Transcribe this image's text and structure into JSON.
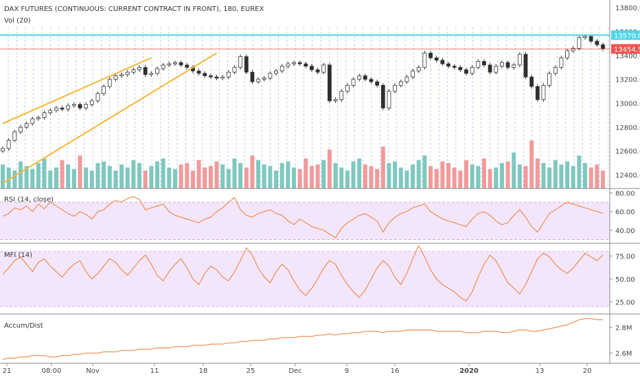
{
  "chart_data": {
    "type": "line",
    "title": "DAX FUTURES (CONTINUOUS: CURRENT CONTRACT IN FRONT), 180, EUREX",
    "x_ticks": [
      "21",
      "08:00",
      "Nov",
      "11",
      "18",
      "25",
      "Dec",
      "9",
      "16",
      "2020",
      "13",
      "20"
    ],
    "price_panel": {
      "y_ticks": [
        13800.0,
        13600.0,
        13400.0,
        13200.0,
        13000.0,
        12800.0,
        12600.0,
        12400.0
      ],
      "ylim": [
        12320,
        13830
      ],
      "volume_label": "Vol (20)",
      "close_series": [
        12620,
        12690,
        12760,
        12800,
        12830,
        12870,
        12880,
        12920,
        12940,
        12960,
        12950,
        12980,
        12990,
        12960,
        12990,
        13020,
        13080,
        13140,
        13200,
        13230,
        13240,
        13260,
        13280,
        13300,
        13240,
        13250,
        13290,
        13320,
        13330,
        13340,
        13320,
        13300,
        13270,
        13250,
        13230,
        13220,
        13210,
        13220,
        13260,
        13300,
        13390,
        13260,
        13180,
        13200,
        13210,
        13250,
        13270,
        13310,
        13330,
        13340,
        13330,
        13310,
        13280,
        13260,
        13320,
        13020,
        13030,
        13100,
        13150,
        13200,
        13230,
        13200,
        13180,
        13150,
        12960,
        13100,
        13150,
        13180,
        13220,
        13270,
        13300,
        13420,
        13380,
        13360,
        13330,
        13310,
        13300,
        13280,
        13250,
        13300,
        13350,
        13320,
        13260,
        13310,
        13340,
        13300,
        13320,
        13410,
        13220,
        13140,
        13030,
        13150,
        13250,
        13300,
        13380,
        13440,
        13460,
        13550,
        13560,
        13520,
        13490,
        13454
      ],
      "ma_line_value": 13570.0,
      "last_value": 13454.5,
      "line_labels": [
        "13570.0",
        "13454.5"
      ],
      "trendlines": [
        "upper-channel",
        "lower-channel"
      ],
      "volume_series": [
        80,
        70,
        60,
        90,
        75,
        65,
        85,
        100,
        60,
        70,
        95,
        80,
        65,
        110,
        70,
        60,
        85,
        90,
        75,
        60,
        80,
        70,
        95,
        85,
        60,
        75,
        90,
        100,
        70,
        65,
        80,
        85,
        60,
        95,
        70,
        75,
        90,
        80,
        65,
        100,
        85,
        70,
        110,
        95,
        80,
        75,
        60,
        85,
        90,
        70,
        65,
        100,
        75,
        80,
        95,
        130,
        85,
        70,
        60,
        90,
        100,
        80,
        75,
        65,
        140,
        85,
        90,
        70,
        60,
        80,
        95,
        110,
        75,
        65,
        90,
        85,
        70,
        60,
        95,
        80,
        75,
        100,
        65,
        70,
        85,
        90,
        120,
        80,
        75,
        160,
        100,
        85,
        70,
        95,
        80,
        90,
        75,
        110,
        85,
        70,
        80,
        60
      ]
    },
    "rsi_panel": {
      "label": "RSI (14, close)",
      "y_ticks": [
        80.0,
        60.0,
        40.0
      ],
      "ylim": [
        26,
        84
      ],
      "band": [
        70,
        30
      ],
      "values": [
        55,
        58,
        64,
        62,
        66,
        60,
        68,
        63,
        70,
        66,
        62,
        58,
        55,
        60,
        57,
        52,
        60,
        62,
        68,
        72,
        70,
        74,
        76,
        73,
        62,
        64,
        66,
        68,
        60,
        56,
        54,
        52,
        50,
        48,
        52,
        54,
        60,
        64,
        70,
        75,
        62,
        56,
        54,
        58,
        60,
        62,
        58,
        56,
        50,
        46,
        52,
        48,
        44,
        42,
        40,
        36,
        32,
        42,
        48,
        52,
        56,
        58,
        54,
        50,
        38,
        48,
        54,
        58,
        60,
        64,
        66,
        68,
        60,
        56,
        52,
        50,
        48,
        46,
        44,
        52,
        58,
        60,
        56,
        50,
        46,
        48,
        56,
        62,
        54,
        44,
        38,
        48,
        58,
        62,
        66,
        70,
        68,
        66,
        64,
        62,
        60,
        58
      ]
    },
    "mfi_panel": {
      "label": "MFI (14)",
      "y_ticks": [
        75.0,
        50.0,
        25.0
      ],
      "ylim": [
        12,
        88
      ],
      "band": [
        80,
        20
      ],
      "values": [
        55,
        62,
        70,
        74,
        66,
        58,
        68,
        72,
        64,
        58,
        52,
        60,
        66,
        70,
        58,
        50,
        56,
        64,
        72,
        68,
        60,
        54,
        62,
        70,
        76,
        66,
        54,
        48,
        58,
        66,
        72,
        62,
        50,
        44,
        56,
        64,
        60,
        52,
        48,
        58,
        70,
        84,
        76,
        62,
        52,
        46,
        58,
        66,
        60,
        48,
        38,
        32,
        40,
        50,
        62,
        70,
        66,
        54,
        44,
        36,
        30,
        38,
        50,
        62,
        70,
        64,
        52,
        44,
        56,
        72,
        86,
        74,
        60,
        50,
        44,
        40,
        36,
        30,
        26,
        36,
        52,
        66,
        76,
        70,
        58,
        46,
        40,
        34,
        44,
        58,
        72,
        78,
        74,
        66,
        60,
        56,
        62,
        70,
        78,
        74,
        70,
        76
      ]
    },
    "ad_panel": {
      "label": "Accum/Dist",
      "y_ticks": [
        "2.8M",
        "2.6M"
      ],
      "ylim": [
        2.52,
        2.9
      ],
      "values": [
        2.55,
        2.56,
        2.56,
        2.57,
        2.57,
        2.58,
        2.58,
        2.58,
        2.57,
        2.57,
        2.58,
        2.58,
        2.59,
        2.59,
        2.6,
        2.6,
        2.6,
        2.61,
        2.61,
        2.61,
        2.62,
        2.62,
        2.62,
        2.63,
        2.63,
        2.63,
        2.64,
        2.64,
        2.64,
        2.65,
        2.65,
        2.65,
        2.66,
        2.66,
        2.66,
        2.67,
        2.67,
        2.67,
        2.68,
        2.68,
        2.69,
        2.69,
        2.7,
        2.7,
        2.7,
        2.71,
        2.71,
        2.72,
        2.72,
        2.72,
        2.73,
        2.73,
        2.73,
        2.74,
        2.74,
        2.75,
        2.74,
        2.75,
        2.75,
        2.76,
        2.76,
        2.77,
        2.77,
        2.77,
        2.76,
        2.77,
        2.77,
        2.77,
        2.78,
        2.78,
        2.78,
        2.78,
        2.78,
        2.77,
        2.77,
        2.77,
        2.77,
        2.77,
        2.76,
        2.76,
        2.76,
        2.77,
        2.77,
        2.77,
        2.76,
        2.76,
        2.77,
        2.78,
        2.78,
        2.77,
        2.77,
        2.78,
        2.79,
        2.8,
        2.81,
        2.82,
        2.84,
        2.86,
        2.87,
        2.87,
        2.86,
        2.86
      ]
    }
  },
  "colors": {
    "up_candle": "#2f2f2f",
    "volume_up": "#7ec8c0",
    "volume_down": "#f29a9a",
    "ma_line": "#4fd7e6",
    "last_line": "#ef5350",
    "trendline": "#f5b731",
    "indicator_line": "#f07a2f",
    "band_fill": "#f3e6fb",
    "band_border": "#c9a0dc",
    "separator_grid": "#5b8fd1"
  }
}
